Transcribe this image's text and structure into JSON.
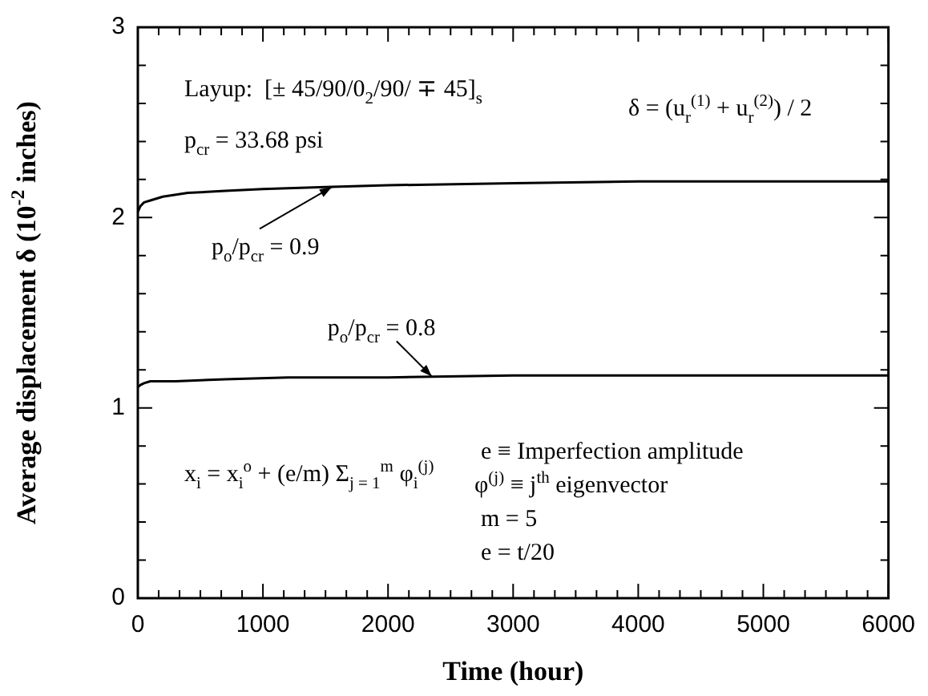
{
  "chart_data": {
    "type": "line",
    "xlabel": "Time (hour)",
    "ylabel": "Average displacement δ (10$^{-2}$ inches)",
    "xlim": [
      0,
      6000
    ],
    "xticks": [
      0,
      {
        "value": 166.7,
        "label": null
      },
      {
        "value": 333.3,
        "label": null
      },
      {
        "value": 500,
        "label": null
      },
      {
        "value": 666.7,
        "label": null
      },
      {
        "value": 833.3,
        "label": null
      },
      1000,
      {
        "value": 1166.7,
        "label": null
      },
      {
        "value": 1333.3,
        "label": null
      },
      {
        "value": 1500,
        "label": null
      },
      {
        "value": 1666.7,
        "label": null
      },
      {
        "value": 1833.3,
        "label": null
      },
      2000,
      {
        "value": 2166.7,
        "label": null
      },
      {
        "value": 2333.3,
        "label": null
      },
      {
        "value": 2500,
        "label": null
      },
      {
        "value": 2666.7,
        "label": null
      },
      {
        "value": 2833.3,
        "label": null
      },
      3000,
      {
        "value": 3166.7,
        "label": null
      },
      {
        "value": 3333.3,
        "label": null
      },
      {
        "value": 3500,
        "label": null
      },
      {
        "value": 3666.7,
        "label": null
      },
      {
        "value": 3833.3,
        "label": null
      },
      4000,
      {
        "value": 4166.7,
        "label": null
      },
      {
        "value": 4333.3,
        "label": null
      },
      {
        "value": 4500,
        "label": null
      },
      {
        "value": 4666.7,
        "label": null
      },
      {
        "value": 4833.3,
        "label": null
      },
      5000,
      {
        "value": 5166.7,
        "label": null
      },
      {
        "value": 5333.3,
        "label": null
      },
      {
        "value": 5500,
        "label": null
      },
      {
        "value": 5666.7,
        "label": null
      },
      {
        "value": 5833.3,
        "label": null
      },
      6000
    ],
    "ylim": [
      0,
      3
    ],
    "yticks": [
      0,
      {
        "value": 0.2,
        "label": null
      },
      {
        "value": 0.4,
        "label": null
      },
      {
        "value": 0.6,
        "label": null
      },
      {
        "value": 0.8,
        "label": null
      },
      1,
      {
        "value": 1.2,
        "label": null
      },
      {
        "value": 1.4,
        "label": null
      },
      {
        "value": 1.6,
        "label": null
      },
      {
        "value": 1.8,
        "label": null
      },
      2,
      {
        "value": 2.2,
        "label": null
      },
      {
        "value": 2.4,
        "label": null
      },
      {
        "value": 2.6,
        "label": null
      },
      {
        "value": 2.8,
        "label": null
      },
      3
    ],
    "grid": false,
    "legend": false,
    "marker": "none",
    "line_style": "solid",
    "series": [
      {
        "color": "#000000",
        "x": [
          0,
          20,
          50,
          100,
          200,
          400,
          700,
          1000,
          1500,
          2000,
          3000,
          4000,
          5000,
          6000
        ],
        "values": [
          2.03,
          2.06,
          2.08,
          2.09,
          2.11,
          2.13,
          2.14,
          2.15,
          2.16,
          2.17,
          2.18,
          2.19,
          2.19,
          2.19
        ]
      },
      {
        "color": "#000000",
        "x": [
          0,
          20,
          50,
          100,
          300,
          700,
          1200,
          2000,
          3000,
          4000,
          5000,
          6000
        ],
        "values": [
          1.11,
          1.12,
          1.13,
          1.14,
          1.14,
          1.15,
          1.16,
          1.16,
          1.17,
          1.17,
          1.17,
          1.17
        ]
      }
    ],
    "annotations": [
      "Layup:  [± 45/90/0$_{2}$/90/ ∓ 45]$_{s}$",
      "p$_{cr}$ = 33.68 psi",
      "δ = (u$_{r}$$^{(1)}$ + u$_{r}$$^{(2)}$) / 2",
      {
        "text": "p$_{o}$/p$_{cr}$ = 0.9",
        "x": 1550,
        "y": 2.16
      },
      {
        "text": "p$_{o}$/p$_{cr}$ = 0.8",
        "x": 2350,
        "y": 1.165
      },
      "x$_{i}$ = x$_{i}$$^{o}$ + (e/m) Σ$_{j = 1}$$^{m}$ φ$_{i}$$^{(j)}$",
      "e ≡ Imperfection amplitude",
      "φ$^{(j)}$ ≡ j$^{th}$ eigenvector",
      "m = 5",
      "e = t/20"
    ]
  }
}
